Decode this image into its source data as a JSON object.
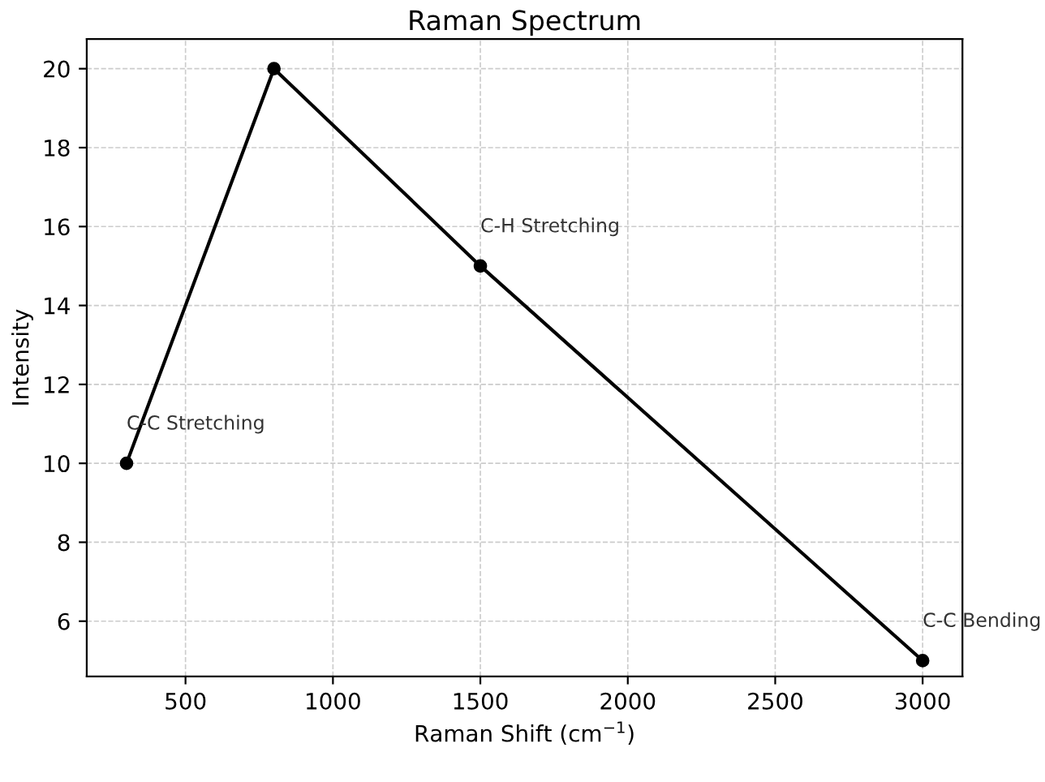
{
  "chart_data": {
    "type": "line",
    "title": "Raman Spectrum",
    "xlabel": "Raman Shift (cm$^{−1}$)",
    "ylabel": "Intensity",
    "x": [
      300,
      800,
      1500,
      3000
    ],
    "series": [
      {
        "color": "#000000",
        "values": [
          10,
          20,
          15,
          5
        ]
      }
    ],
    "marker": "circle",
    "line_style": "solid",
    "annotations": [
      {
        "text": "C-C Stretching",
        "x": 300,
        "y": 10
      },
      {
        "text": "C-H Stretching",
        "x": 1500,
        "y": 15
      },
      {
        "text": "C-C Bending",
        "x": 3000,
        "y": 5
      }
    ],
    "xlim": [
      165,
      3135
    ],
    "ylim": [
      4.6,
      20.75
    ],
    "xticks": [
      500,
      1000,
      1500,
      2000,
      2500,
      3000
    ],
    "yticks": [
      6,
      8,
      10,
      12,
      14,
      16,
      18,
      20
    ],
    "grid": true
  }
}
